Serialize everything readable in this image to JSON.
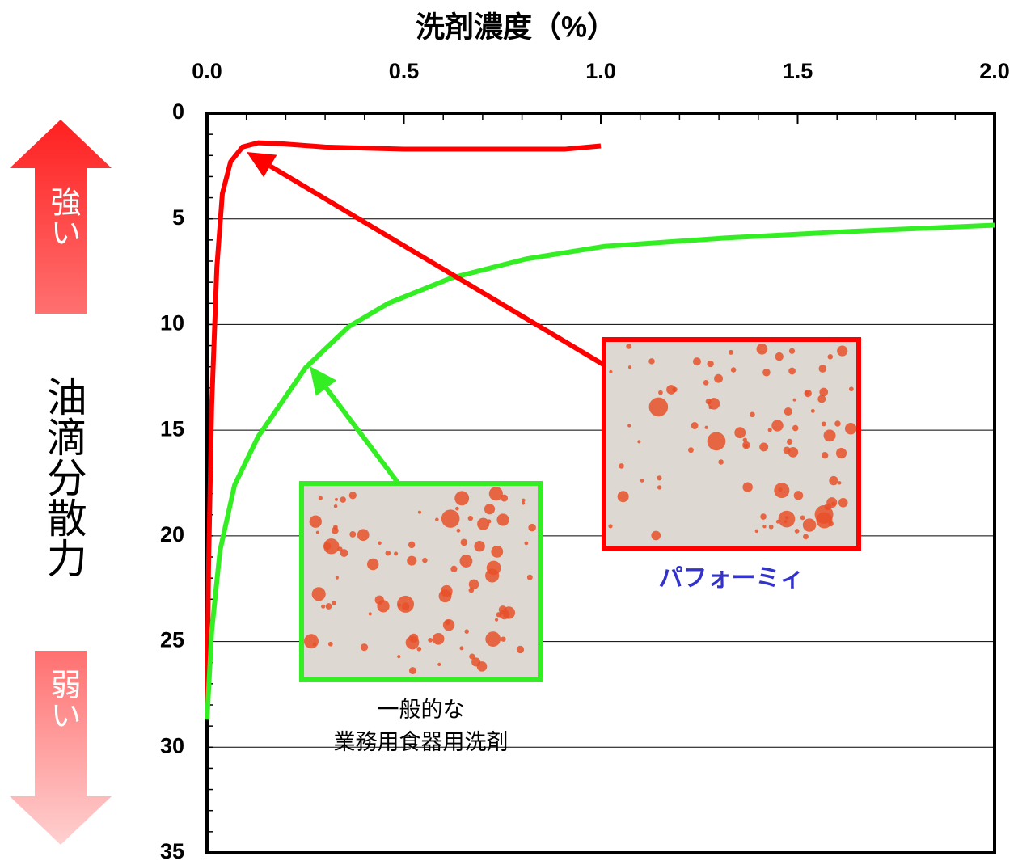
{
  "chart_data": {
    "type": "line",
    "x_label": "洗剤濃度（%）",
    "y_label": "油滴分散力",
    "y_strong_label": "強い",
    "y_weak_label": "弱い",
    "xlim": [
      0,
      2.0
    ],
    "ylim": [
      0,
      35
    ],
    "y_reversed": true,
    "xticks": [
      {
        "value": 0,
        "label": "0.0"
      },
      0.5,
      {
        "value": 1,
        "label": "1.0"
      },
      1.5,
      {
        "value": 2,
        "label": "2.0"
      }
    ],
    "yticks": [
      0,
      5,
      10,
      15,
      20,
      25,
      30,
      35
    ],
    "grid": true,
    "series": [
      {
        "name": "パフォーミィ",
        "color": "#ff0000",
        "x": [
          0,
          0.004,
          0.012,
          0.025,
          0.039,
          0.06,
          0.09,
          0.13,
          0.19,
          0.3,
          0.5,
          0.71,
          0.91,
          1.0
        ],
        "values": [
          28.5,
          21.4,
          13.8,
          7.3,
          3.8,
          2.3,
          1.6,
          1.4,
          1.45,
          1.6,
          1.7,
          1.7,
          1.7,
          1.55
        ]
      },
      {
        "name": "一般的な\n業務用食器用洗剤",
        "color": "#33ee22",
        "x": [
          0,
          0.012,
          0.033,
          0.07,
          0.13,
          0.25,
          0.36,
          0.46,
          0.62,
          0.81,
          1.01,
          1.32,
          1.63,
          2.0
        ],
        "values": [
          28.7,
          24.5,
          20.7,
          17.6,
          15.3,
          12.05,
          10.1,
          9.0,
          7.8,
          6.9,
          6.3,
          5.9,
          5.6,
          5.3
        ]
      }
    ]
  }
}
